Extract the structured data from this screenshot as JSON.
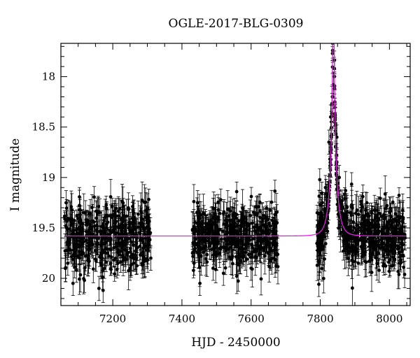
{
  "chart_data": {
    "type": "scatter",
    "title": "OGLE-2017-BLG-0309",
    "xlabel": "HJD - 2450000",
    "ylabel": "I magnitude",
    "xlim": [
      7050,
      8060
    ],
    "ylim": [
      20.27,
      17.67
    ],
    "y_inverted": true,
    "grid": false,
    "legend": "none",
    "x_ticks": [
      7200,
      7400,
      7600,
      7800,
      8000
    ],
    "x_tick_labels": [
      "7200",
      "7400",
      "7600",
      "7800",
      "8000"
    ],
    "y_ticks": [
      18,
      18.5,
      19,
      19.5,
      20
    ],
    "y_tick_labels": [
      "18",
      "18.5",
      "19",
      "19.5",
      "20"
    ],
    "series": [
      {
        "kind": "observations",
        "color": "#000000",
        "observing_seasons": [
          {
            "start": 7060,
            "end": 7310
          },
          {
            "start": 7430,
            "end": 7680
          },
          {
            "start": 7790,
            "end": 8045
          }
        ],
        "baseline_magnitude": 19.58,
        "points": [
          {
            "x": 7065,
            "y": 19.25
          },
          {
            "x": 7070,
            "y": 19.85
          },
          {
            "x": 7078,
            "y": 19.72
          },
          {
            "x": 7085,
            "y": 20.05
          },
          {
            "x": 7095,
            "y": 19.92
          },
          {
            "x": 7105,
            "y": 19.45
          },
          {
            "x": 7118,
            "y": 20.02
          },
          {
            "x": 7130,
            "y": 19.68
          },
          {
            "x": 7150,
            "y": 19.81
          },
          {
            "x": 7160,
            "y": 20.1
          },
          {
            "x": 7172,
            "y": 20.12
          },
          {
            "x": 7185,
            "y": 19.75
          },
          {
            "x": 7200,
            "y": 19.38
          },
          {
            "x": 7215,
            "y": 19.85
          },
          {
            "x": 7230,
            "y": 19.58
          },
          {
            "x": 7250,
            "y": 19.9
          },
          {
            "x": 7260,
            "y": 19.35
          },
          {
            "x": 7280,
            "y": 19.6
          },
          {
            "x": 7298,
            "y": 19.72
          },
          {
            "x": 7310,
            "y": 19.8
          },
          {
            "x": 7435,
            "y": 19.85
          },
          {
            "x": 7445,
            "y": 19.25
          },
          {
            "x": 7452,
            "y": 20.05
          },
          {
            "x": 7470,
            "y": 19.5
          },
          {
            "x": 7490,
            "y": 19.9
          },
          {
            "x": 7505,
            "y": 19.32
          },
          {
            "x": 7520,
            "y": 19.95
          },
          {
            "x": 7540,
            "y": 19.55
          },
          {
            "x": 7560,
            "y": 19.85
          },
          {
            "x": 7580,
            "y": 19.4
          },
          {
            "x": 7600,
            "y": 19.9
          },
          {
            "x": 7625,
            "y": 19.62
          },
          {
            "x": 7650,
            "y": 19.75
          },
          {
            "x": 7675,
            "y": 19.45
          },
          {
            "x": 7795,
            "y": 19.55
          },
          {
            "x": 7805,
            "y": 19.4
          },
          {
            "x": 7815,
            "y": 19.1
          },
          {
            "x": 7825,
            "y": 18.65
          },
          {
            "x": 7830,
            "y": 18.4
          },
          {
            "x": 7835,
            "y": 18.2
          },
          {
            "x": 7838,
            "y": 18.08
          },
          {
            "x": 7842,
            "y": 18.25
          },
          {
            "x": 7848,
            "y": 18.6
          },
          {
            "x": 7855,
            "y": 19.0
          },
          {
            "x": 7865,
            "y": 19.3
          },
          {
            "x": 7875,
            "y": 19.45
          },
          {
            "x": 7890,
            "y": 19.55
          },
          {
            "x": 7910,
            "y": 19.85
          },
          {
            "x": 7930,
            "y": 19.38
          },
          {
            "x": 7950,
            "y": 19.65
          },
          {
            "x": 7970,
            "y": 19.92
          },
          {
            "x": 7990,
            "y": 19.6
          },
          {
            "x": 8010,
            "y": 19.75
          },
          {
            "x": 8030,
            "y": 19.55
          },
          {
            "x": 8045,
            "y": 19.6
          }
        ]
      },
      {
        "kind": "model",
        "color": "#e020e0",
        "model": {
          "t0": 7838,
          "tE": 19,
          "u0": 0.045,
          "baseline": 19.58,
          "fs": 0.66
        }
      }
    ]
  }
}
